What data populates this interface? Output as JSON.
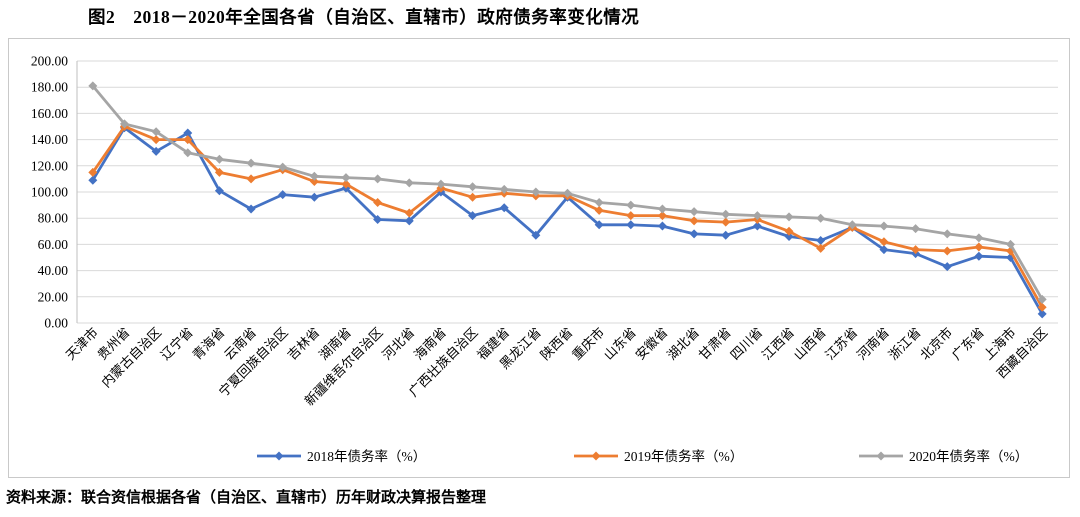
{
  "title": "图2　2018－2020年全国各省（自治区、直辖市）政府债务率变化情况",
  "source": "资料来源：联合资信根据各省（自治区、直辖市）历年财政决算报告整理",
  "colors": {
    "series_2018": "#4472C4",
    "series_2019": "#ED7D31",
    "series_2020": "#A5A5A5",
    "gridline": "#D9D9D9",
    "axis_line": "#BFBFBF",
    "frame_border": "#C9C9C9",
    "text": "#000000"
  },
  "chart_data": {
    "type": "line",
    "title": "图2　2018－2020年全国各省（自治区、直辖市）政府债务率变化情况",
    "xlabel": "",
    "ylabel": "",
    "ylim": [
      0,
      200
    ],
    "ytick_step": 20,
    "ytick_decimals": 2,
    "grid": true,
    "marker": "diamond",
    "legend_position": "bottom",
    "categories": [
      "天津市",
      "贵州省",
      "内蒙古自治区",
      "辽宁省",
      "青海省",
      "云南省",
      "宁夏回族自治区",
      "吉林省",
      "湖南省",
      "新疆维吾尔自治区",
      "河北省",
      "海南省",
      "广西壮族自治区",
      "福建省",
      "黑龙江省",
      "陕西省",
      "重庆市",
      "山东省",
      "安徽省",
      "湖北省",
      "甘肃省",
      "四川省",
      "江西省",
      "山西省",
      "江苏省",
      "河南省",
      "浙江省",
      "北京市",
      "广东省",
      "上海市",
      "西藏自治区"
    ],
    "series": [
      {
        "key": "2018",
        "name": "2018年债务率（%）",
        "color": "#4472C4",
        "values": [
          109,
          149,
          131,
          145,
          101,
          87,
          98,
          96,
          103,
          79,
          78,
          100,
          82,
          88,
          67,
          96,
          75,
          75,
          74,
          68,
          67,
          74,
          66,
          63,
          73,
          56,
          53,
          43,
          51,
          50,
          7
        ]
      },
      {
        "key": "2019",
        "name": "2019年债务率（%）",
        "color": "#ED7D31",
        "values": [
          115,
          150,
          140,
          140,
          115,
          110,
          117,
          108,
          106,
          92,
          84,
          103,
          96,
          99,
          97,
          97,
          86,
          82,
          82,
          78,
          77,
          79,
          70,
          57,
          73,
          62,
          56,
          55,
          58,
          55,
          12
        ]
      },
      {
        "key": "2020",
        "name": "2020年债务率（%）",
        "color": "#A5A5A5",
        "values": [
          181,
          152,
          146,
          130,
          125,
          122,
          119,
          112,
          111,
          110,
          107,
          106,
          104,
          102,
          100,
          99,
          92,
          90,
          87,
          85,
          83,
          82,
          81,
          80,
          75,
          74,
          72,
          68,
          65,
          60,
          18
        ]
      }
    ]
  }
}
